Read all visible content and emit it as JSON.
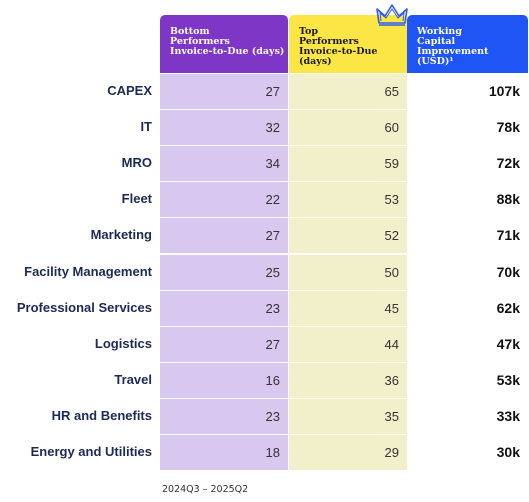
{
  "headers": {
    "bottom": "Bottom\nPerformers\nInvoice-to-Due (days)",
    "top": "Top\nPerformers\nInvoice-to-Due (days)",
    "wc": "Working\nCapital\nImprovement (USD)¹"
  },
  "colors": {
    "bottom": "#7d36c6",
    "top": "#fbe646",
    "wc": "#1f54f5"
  },
  "icons": {
    "crown": "crown-icon"
  },
  "rows": [
    {
      "label": "CAPEX",
      "bottom": "27",
      "top": "65",
      "wc": "107k"
    },
    {
      "label": "IT",
      "bottom": "32",
      "top": "60",
      "wc": "78k"
    },
    {
      "label": "MRO",
      "bottom": "34",
      "top": "59",
      "wc": "72k"
    },
    {
      "label": "Fleet",
      "bottom": "22",
      "top": "53",
      "wc": "88k"
    },
    {
      "label": "Marketing",
      "bottom": "27",
      "top": "52",
      "wc": "71k"
    },
    {
      "label": "Facility Management",
      "bottom": "25",
      "top": "50",
      "wc": "70k"
    },
    {
      "label": "Professional Services",
      "bottom": "23",
      "top": "45",
      "wc": "62k"
    },
    {
      "label": "Logistics",
      "bottom": "27",
      "top": "44",
      "wc": "47k"
    },
    {
      "label": "Travel",
      "bottom": "16",
      "top": "36",
      "wc": "53k"
    },
    {
      "label": "HR and Benefits",
      "bottom": "23",
      "top": "35",
      "wc": "33k"
    },
    {
      "label": "Energy and Utilities",
      "bottom": "18",
      "top": "29",
      "wc": "30k"
    }
  ],
  "footnote": "2024Q3 – 2025Q2"
}
